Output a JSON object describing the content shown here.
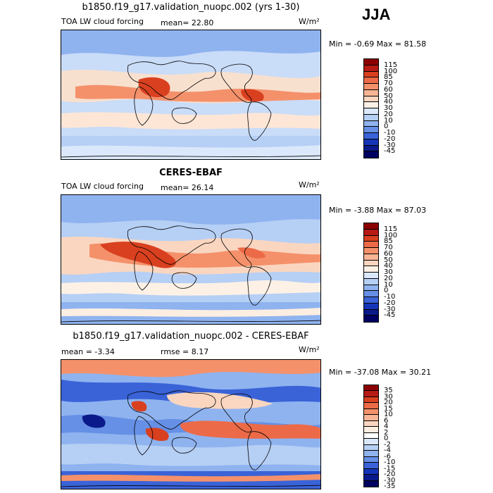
{
  "season": "JJA",
  "panels": [
    {
      "title": "b1850.f19_g17.validation_nuopc.002 (yrs 1-30)",
      "left_label": "TOA LW cloud forcing",
      "mean_text": "mean=  22.80",
      "rmse_text": "",
      "units": "W/m²",
      "minmax": "Min =  -0.69 Max =  81.58",
      "scale": [
        "115",
        "100",
        "85",
        "70",
        "60",
        "50",
        "40",
        "30",
        "20",
        "10",
        "0",
        "-10",
        "-20",
        "-30",
        "-45"
      ],
      "colors": [
        "#8b0000",
        "#b81a14",
        "#d9401f",
        "#ec6a47",
        "#f4916b",
        "#f8b595",
        "#fad6c0",
        "#fdf1e6",
        "#dbe8fb",
        "#b6cff5",
        "#8fb3ef",
        "#6690e6",
        "#3a63d8",
        "#1535b8",
        "#0a1a8a",
        "#000060"
      ]
    },
    {
      "title": "CERES-EBAF",
      "left_label": "TOA LW cloud forcing",
      "mean_text": "mean=  26.14",
      "rmse_text": "",
      "units": "W/m²",
      "minmax": "Min =  -3.88 Max =  87.03",
      "scale": [
        "115",
        "100",
        "85",
        "70",
        "60",
        "50",
        "40",
        "30",
        "20",
        "10",
        "0",
        "-10",
        "-20",
        "-30",
        "-45"
      ],
      "colors": [
        "#8b0000",
        "#b81a14",
        "#d9401f",
        "#ec6a47",
        "#f4916b",
        "#f8b595",
        "#fad6c0",
        "#fdf1e6",
        "#dbe8fb",
        "#b6cff5",
        "#8fb3ef",
        "#6690e6",
        "#3a63d8",
        "#1535b8",
        "#0a1a8a",
        "#000060"
      ]
    },
    {
      "title": "b1850.f19_g17.validation_nuopc.002 - CERES-EBAF",
      "left_label": "mean =   -3.34",
      "mean_text": "",
      "rmse_text": "rmse =    8.17",
      "units": "W/m²",
      "minmax": "Min = -37.08 Max =   30.21",
      "scale": [
        "35",
        "30",
        "20",
        "15",
        "10",
        "6",
        "4",
        "2",
        "0",
        "-2",
        "-4",
        "-6",
        "-10",
        "-15",
        "-20",
        "-30",
        "-35"
      ],
      "colors": [
        "#8b0000",
        "#b81a14",
        "#d9401f",
        "#ec6a47",
        "#f4916b",
        "#f8b595",
        "#fad6c0",
        "#fdeee2",
        "#ffffff",
        "#dbe8fb",
        "#b6cff5",
        "#8fb3ef",
        "#6690e6",
        "#3a63d8",
        "#1535b8",
        "#0a1a8a",
        "#000060"
      ]
    }
  ]
}
